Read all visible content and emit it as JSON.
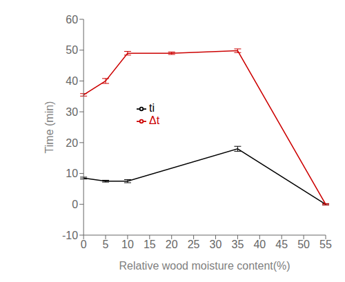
{
  "chart_data": {
    "type": "line",
    "xlabel": "Relative wood moisture content(%)",
    "ylabel": "Time (min)",
    "series": [
      {
        "name": "ti",
        "color": "#000000",
        "x": [
          0,
          5,
          10,
          35,
          55
        ],
        "values": [
          8.5,
          7.5,
          7.5,
          18.0,
          0.0
        ],
        "errors": [
          0.3,
          0.3,
          0.5,
          0.8,
          0.2
        ]
      },
      {
        "name": "Δt",
        "color": "#cc0000",
        "x": [
          0,
          5,
          10,
          20,
          35,
          55
        ],
        "values": [
          35.5,
          40.0,
          49.0,
          49.0,
          49.8,
          0.0
        ],
        "errors": [
          0.4,
          0.8,
          0.6,
          0.4,
          0.6,
          0.2
        ]
      }
    ],
    "xlim": [
      0,
      55
    ],
    "ylim": [
      -10,
      60
    ],
    "xticks": [
      0,
      5,
      10,
      15,
      20,
      25,
      30,
      35,
      40,
      45,
      50,
      55
    ],
    "yticks": [
      -10,
      0,
      10,
      20,
      30,
      40,
      50,
      60
    ],
    "grid": false,
    "legend": "center"
  }
}
